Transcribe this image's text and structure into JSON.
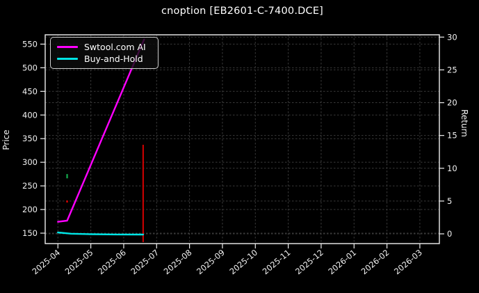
{
  "colors": {
    "background": "#000000",
    "foreground": "#f2f2f2",
    "grid": "#3a3a3a",
    "spine": "#efefef",
    "series_ai": "#ff00ff",
    "series_hold": "#00e5e5",
    "signal_green": "#12a048",
    "signal_red": "#e60000"
  },
  "chart_data": {
    "type": "line",
    "title": "cnoption [EB2601-C-7400.DCE]",
    "grid": true,
    "x_axis": {
      "unit": "month",
      "month_zero": "2025-04",
      "tick_labels": [
        "2025-04",
        "2025-05",
        "2025-06",
        "2025-07",
        "2025-08",
        "2025-09",
        "2025-10",
        "2025-11",
        "2025-12",
        "2026-01",
        "2026-02",
        "2026-03"
      ],
      "tick_rotation_deg": -40
    },
    "left_axis": {
      "label": "Price",
      "ticks": [
        550,
        500,
        450,
        400,
        350,
        300,
        250,
        200,
        150
      ],
      "min": 126,
      "max": 568
    },
    "right_axis": {
      "label": "Return",
      "ticks": [
        30,
        25,
        20,
        15,
        10,
        5,
        0
      ],
      "min": -1.5,
      "max": 31.8
    },
    "series": [
      {
        "name": "Swtool.com AI",
        "color": "#ff00ff",
        "axis": "price",
        "points_month_price": [
          [
            0,
            174
          ],
          [
            0.28,
            176.5
          ],
          [
            2.62,
            560
          ]
        ]
      },
      {
        "name": "Buy-and-Hold",
        "color": "#00e5e5",
        "axis": "price",
        "points_month_price": [
          [
            0,
            151.5
          ],
          [
            0.4,
            148.8
          ],
          [
            1.0,
            147.8
          ],
          [
            1.8,
            147.2
          ],
          [
            2.59,
            147
          ]
        ]
      }
    ],
    "annotations": [
      {
        "kind": "vline",
        "name": "latest-bar-range",
        "month": 2.59,
        "price_from": 131,
        "price_to": 337,
        "color": "#e60000",
        "width": 1.8
      },
      {
        "kind": "bar",
        "name": "green-signal",
        "month": 0.28,
        "price_from": 266,
        "price_to": 275,
        "color": "#12a048",
        "width": 2.4
      },
      {
        "kind": "dot",
        "name": "red-signal",
        "month": 0.28,
        "price": 217,
        "color": "#e60000",
        "width": 2.2
      }
    ],
    "legend": {
      "position": "upper-left",
      "entries": [
        "Swtool.com AI",
        "Buy-and-Hold"
      ]
    }
  }
}
